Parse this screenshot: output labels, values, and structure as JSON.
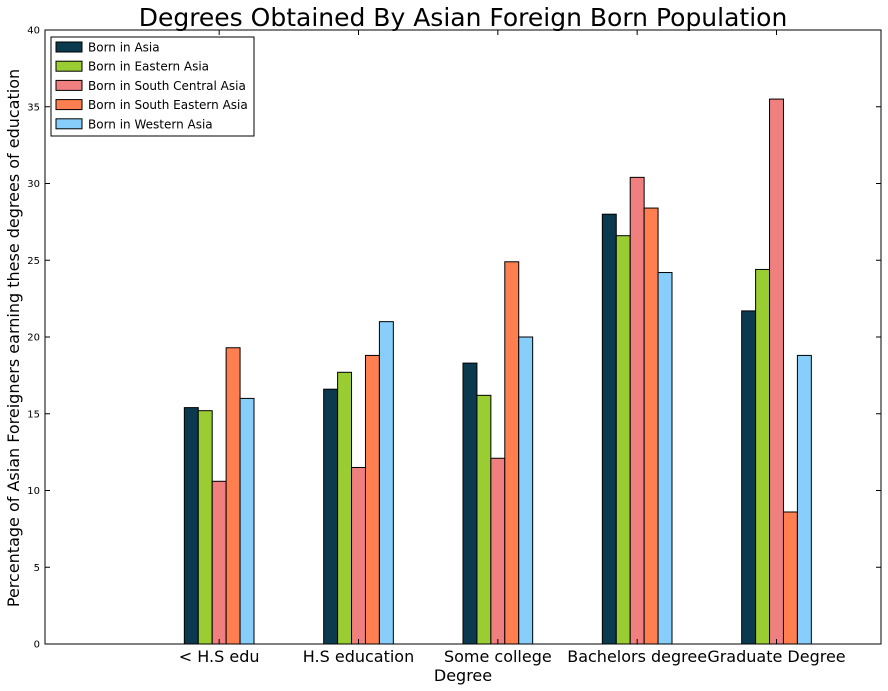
{
  "chart_data": {
    "type": "bar",
    "title": "Degrees Obtained By Asian Foreign Born Population",
    "xlabel": "Degree",
    "ylabel": "Percentage of Asian Foreigners earning these degrees of education",
    "ylim": [
      0,
      40
    ],
    "yticks": [
      "0",
      "5",
      "10",
      "15",
      "20",
      "25",
      "30",
      "35",
      "40"
    ],
    "categories": [
      "< H.S edu",
      "H.S education",
      "Some college",
      "Bachelors degree",
      "Graduate Degree"
    ],
    "legend_position": "top-left",
    "grid": false,
    "series": [
      {
        "name": "Born in Asia",
        "color": "#0b3a4e",
        "values": [
          15.4,
          16.6,
          18.3,
          28.0,
          21.7
        ]
      },
      {
        "name": "Born in Eastern Asia",
        "color": "#9acd32",
        "values": [
          15.2,
          17.7,
          16.2,
          26.6,
          24.4
        ]
      },
      {
        "name": "Born in South Central Asia",
        "color": "#f08080",
        "values": [
          10.6,
          11.5,
          12.1,
          30.4,
          35.5
        ]
      },
      {
        "name": "Born in South Eastern Asia",
        "color": "#ff7f50",
        "values": [
          19.3,
          18.8,
          24.9,
          28.4,
          8.6
        ]
      },
      {
        "name": "Born in Western Asia",
        "color": "#87cefa",
        "values": [
          16.0,
          21.0,
          20.0,
          24.2,
          18.8
        ]
      }
    ]
  }
}
